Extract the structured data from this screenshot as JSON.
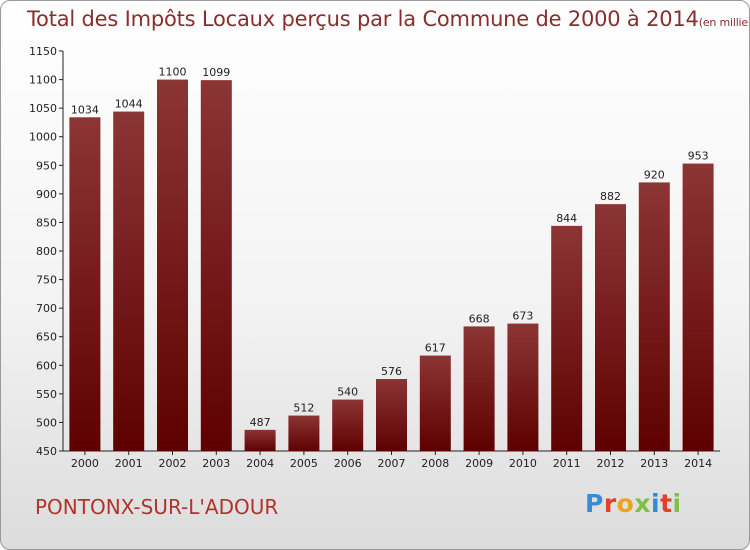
{
  "title": "Total des Impôts Locaux perçus par la Commune de 2000 à 2014",
  "title_unit": "(en milliers d'€)",
  "commune": "PONTONX-SUR-L'ADOUR",
  "logo": {
    "text": "Proxiti"
  },
  "colors": {
    "bar_dark": "#5e0000",
    "bar_light": "#8c3535",
    "title": "#8a2d2d",
    "commune": "#b2332b"
  },
  "chart_data": {
    "type": "bar",
    "title": "Total des Impôts Locaux perçus par la Commune de 2000 à 2014",
    "xlabel": "",
    "ylabel": "",
    "categories": [
      "2000",
      "2001",
      "2002",
      "2003",
      "2004",
      "2005",
      "2006",
      "2007",
      "2008",
      "2009",
      "2010",
      "2011",
      "2012",
      "2013",
      "2014"
    ],
    "values": [
      1034,
      1044,
      1100,
      1099,
      487,
      512,
      540,
      576,
      617,
      668,
      673,
      844,
      882,
      920,
      953
    ],
    "ylim": [
      450,
      1150
    ],
    "yticks": [
      450,
      500,
      550,
      600,
      650,
      700,
      750,
      800,
      850,
      900,
      950,
      1000,
      1050,
      1100,
      1150
    ],
    "grid": false,
    "legend": "none"
  }
}
